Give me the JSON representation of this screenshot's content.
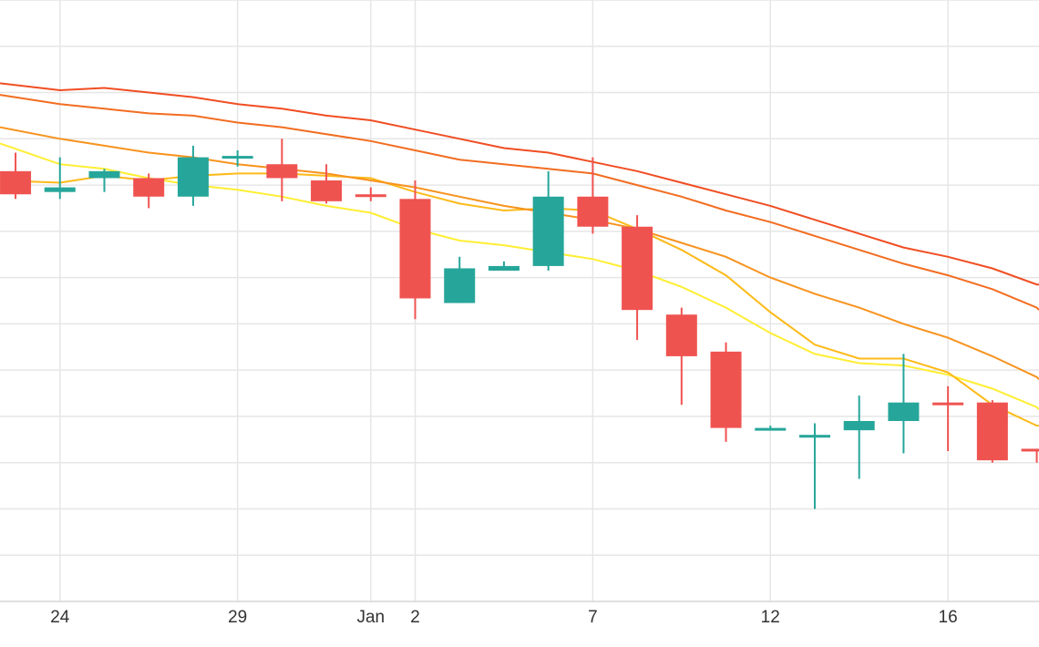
{
  "chart_data": {
    "type": "candlestick",
    "title": "",
    "xlabel": "",
    "ylabel": "",
    "grid": true,
    "x_ticks": [
      {
        "label": "24",
        "x": 0
      },
      {
        "label": "29",
        "x": 4
      },
      {
        "label": "Jan",
        "x": 7
      },
      {
        "label": "2",
        "x": 8
      },
      {
        "label": "7",
        "x": 12
      },
      {
        "label": "12",
        "x": 16
      },
      {
        "label": "16",
        "x": 20
      }
    ],
    "xlim": [
      -1.35,
      22.05
    ],
    "ylim": [
      0,
      13
    ],
    "candles": [
      {
        "x": -1,
        "open": 9.3,
        "high": 9.7,
        "low": 8.7,
        "close": 8.8
      },
      {
        "x": 0,
        "open": 8.85,
        "high": 9.6,
        "low": 8.7,
        "close": 8.95
      },
      {
        "x": 1,
        "open": 9.15,
        "high": 9.35,
        "low": 8.85,
        "close": 9.3
      },
      {
        "x": 2,
        "open": 9.15,
        "high": 9.25,
        "low": 8.5,
        "close": 8.75
      },
      {
        "x": 3,
        "open": 8.75,
        "high": 9.85,
        "low": 8.55,
        "close": 9.6
      },
      {
        "x": 4,
        "open": 9.63,
        "high": 9.75,
        "low": 9.4,
        "close": 9.63
      },
      {
        "x": 5,
        "open": 9.45,
        "high": 10.0,
        "low": 8.65,
        "close": 9.15
      },
      {
        "x": 6,
        "open": 9.1,
        "high": 9.45,
        "low": 8.6,
        "close": 8.65
      },
      {
        "x": 7,
        "open": 8.8,
        "high": 8.95,
        "low": 8.65,
        "close": 8.75
      },
      {
        "x": 8,
        "open": 8.7,
        "high": 9.1,
        "low": 6.1,
        "close": 6.55
      },
      {
        "x": 9,
        "open": 6.45,
        "high": 7.45,
        "low": 6.45,
        "close": 7.2
      },
      {
        "x": 10,
        "open": 7.15,
        "high": 7.35,
        "low": 7.15,
        "close": 7.25
      },
      {
        "x": 11,
        "open": 7.25,
        "high": 9.3,
        "low": 7.15,
        "close": 8.75
      },
      {
        "x": 12,
        "open": 8.75,
        "high": 9.6,
        "low": 7.95,
        "close": 8.1
      },
      {
        "x": 13,
        "open": 8.1,
        "high": 8.35,
        "low": 5.65,
        "close": 6.3
      },
      {
        "x": 14,
        "open": 6.2,
        "high": 6.35,
        "low": 4.25,
        "close": 5.3
      },
      {
        "x": 15,
        "open": 5.4,
        "high": 5.6,
        "low": 3.45,
        "close": 3.75
      },
      {
        "x": 16,
        "open": 3.75,
        "high": 3.8,
        "low": 3.7,
        "close": 3.75
      },
      {
        "x": 17,
        "open": 3.6,
        "high": 3.85,
        "low": 2.0,
        "close": 3.6
      },
      {
        "x": 18,
        "open": 3.7,
        "high": 4.45,
        "low": 2.65,
        "close": 3.9
      },
      {
        "x": 19,
        "open": 3.9,
        "high": 5.35,
        "low": 3.2,
        "close": 4.3
      },
      {
        "x": 20,
        "open": 4.3,
        "high": 4.65,
        "low": 3.25,
        "close": 4.25
      },
      {
        "x": 21,
        "open": 4.3,
        "high": 4.35,
        "low": 3.0,
        "close": 3.05
      },
      {
        "x": 22,
        "open": 3.3,
        "high": 3.3,
        "low": 3.0,
        "close": 3.25
      }
    ],
    "moving_averages": [
      {
        "color": "#ffee33",
        "points": [
          [
            -1.35,
            9.9
          ],
          [
            0,
            9.45
          ],
          [
            1,
            9.35
          ],
          [
            2,
            9.15
          ],
          [
            3,
            9.0
          ],
          [
            4,
            8.9
          ],
          [
            5,
            8.75
          ],
          [
            6,
            8.55
          ],
          [
            7,
            8.4
          ],
          [
            8,
            8.05
          ],
          [
            9,
            7.8
          ],
          [
            10,
            7.7
          ],
          [
            11,
            7.55
          ],
          [
            12,
            7.4
          ],
          [
            13,
            7.15
          ],
          [
            14,
            6.8
          ],
          [
            15,
            6.35
          ],
          [
            16,
            5.8
          ],
          [
            17,
            5.35
          ],
          [
            18,
            5.15
          ],
          [
            19,
            5.1
          ],
          [
            20,
            4.9
          ],
          [
            21,
            4.6
          ],
          [
            22,
            4.2
          ],
          [
            22.05,
            4.15
          ]
        ]
      },
      {
        "color": "#fdba1a",
        "points": [
          [
            -1.35,
            9.1
          ],
          [
            0,
            9.05
          ],
          [
            1,
            9.2
          ],
          [
            2,
            9.1
          ],
          [
            3,
            9.2
          ],
          [
            4,
            9.25
          ],
          [
            5,
            9.25
          ],
          [
            6,
            9.2
          ],
          [
            7,
            9.15
          ],
          [
            8,
            8.85
          ],
          [
            9,
            8.6
          ],
          [
            10,
            8.45
          ],
          [
            11,
            8.5
          ],
          [
            12,
            8.45
          ],
          [
            13,
            8.05
          ],
          [
            14,
            7.6
          ],
          [
            15,
            7.05
          ],
          [
            16,
            6.25
          ],
          [
            17,
            5.55
          ],
          [
            18,
            5.25
          ],
          [
            19,
            5.25
          ],
          [
            20,
            4.95
          ],
          [
            21,
            4.25
          ],
          [
            22,
            3.8
          ],
          [
            22.05,
            3.8
          ]
        ]
      },
      {
        "color": "#f7931e",
        "points": [
          [
            -1.35,
            10.25
          ],
          [
            0,
            10.0
          ],
          [
            1,
            9.85
          ],
          [
            2,
            9.7
          ],
          [
            3,
            9.6
          ],
          [
            4,
            9.45
          ],
          [
            5,
            9.35
          ],
          [
            6,
            9.25
          ],
          [
            7,
            9.1
          ],
          [
            8,
            8.95
          ],
          [
            9,
            8.75
          ],
          [
            10,
            8.55
          ],
          [
            11,
            8.4
          ],
          [
            12,
            8.25
          ],
          [
            13,
            8.05
          ],
          [
            14,
            7.75
          ],
          [
            15,
            7.45
          ],
          [
            16,
            7.0
          ],
          [
            17,
            6.65
          ],
          [
            18,
            6.35
          ],
          [
            19,
            6.0
          ],
          [
            20,
            5.7
          ],
          [
            21,
            5.3
          ],
          [
            22,
            4.85
          ],
          [
            22.05,
            4.8
          ]
        ]
      },
      {
        "color": "#f26d21",
        "points": [
          [
            -1.35,
            10.95
          ],
          [
            0,
            10.75
          ],
          [
            1,
            10.65
          ],
          [
            2,
            10.55
          ],
          [
            3,
            10.5
          ],
          [
            4,
            10.35
          ],
          [
            5,
            10.25
          ],
          [
            6,
            10.1
          ],
          [
            7,
            9.95
          ],
          [
            8,
            9.75
          ],
          [
            9,
            9.55
          ],
          [
            10,
            9.45
          ],
          [
            11,
            9.35
          ],
          [
            12,
            9.25
          ],
          [
            13,
            9.0
          ],
          [
            14,
            8.75
          ],
          [
            15,
            8.45
          ],
          [
            16,
            8.2
          ],
          [
            17,
            7.9
          ],
          [
            18,
            7.6
          ],
          [
            19,
            7.3
          ],
          [
            20,
            7.05
          ],
          [
            21,
            6.75
          ],
          [
            22,
            6.35
          ],
          [
            22.05,
            6.3
          ]
        ]
      },
      {
        "color": "#f04e23",
        "points": [
          [
            -1.35,
            11.2
          ],
          [
            0,
            11.05
          ],
          [
            1,
            11.1
          ],
          [
            2,
            11.0
          ],
          [
            3,
            10.9
          ],
          [
            4,
            10.75
          ],
          [
            5,
            10.65
          ],
          [
            6,
            10.5
          ],
          [
            7,
            10.4
          ],
          [
            8,
            10.2
          ],
          [
            9,
            10.0
          ],
          [
            10,
            9.8
          ],
          [
            11,
            9.7
          ],
          [
            12,
            9.5
          ],
          [
            13,
            9.3
          ],
          [
            14,
            9.05
          ],
          [
            15,
            8.8
          ],
          [
            16,
            8.55
          ],
          [
            17,
            8.25
          ],
          [
            18,
            7.95
          ],
          [
            19,
            7.65
          ],
          [
            20,
            7.45
          ],
          [
            21,
            7.2
          ],
          [
            22,
            6.85
          ],
          [
            22.05,
            6.85
          ]
        ]
      }
    ],
    "colors": {
      "up": "#26a69a",
      "down": "#ef5350",
      "grid": "#e6e6e6",
      "background": "#ffffff"
    }
  }
}
